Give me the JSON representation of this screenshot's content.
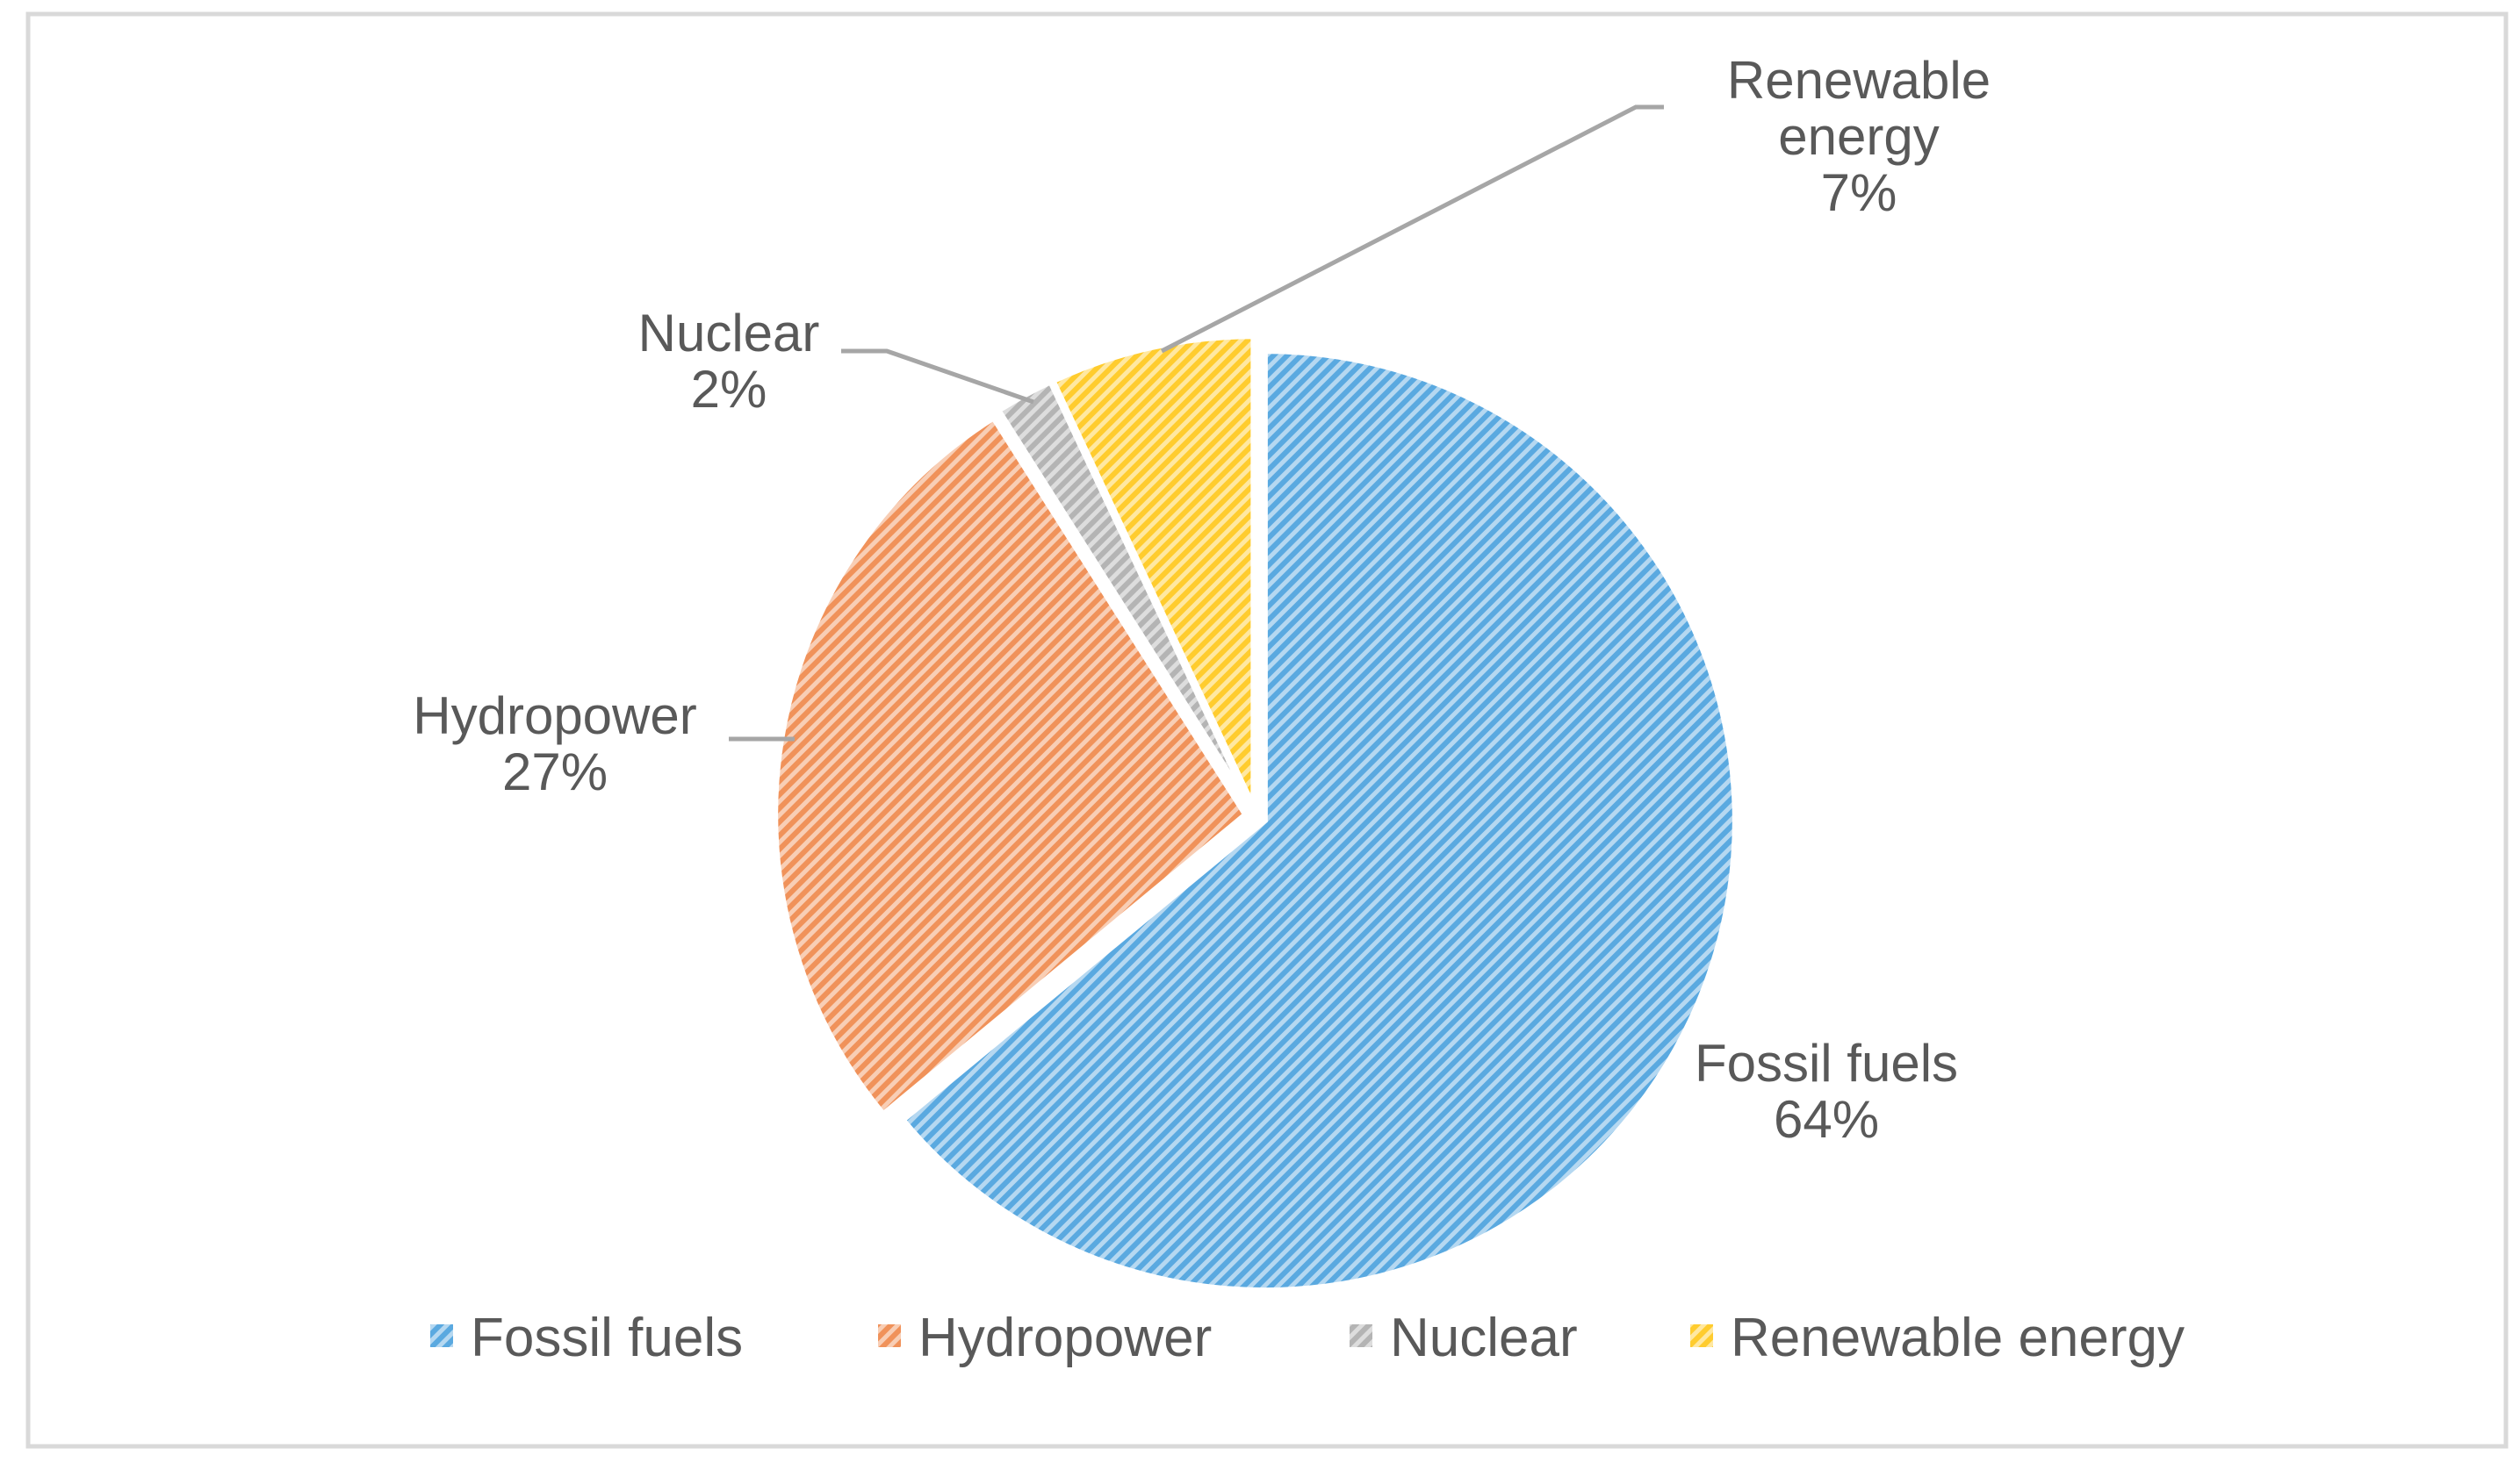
{
  "chart_data": {
    "type": "pie",
    "title": "",
    "slices": [
      {
        "label": "Fossil fuels",
        "value": 64,
        "label_lines": [
          "Fossil fuels"
        ],
        "percent_text": "64%",
        "color": "#5aa9e0"
      },
      {
        "label": "Hydropower",
        "value": 27,
        "label_lines": [
          "Hydropower"
        ],
        "percent_text": "27%",
        "color": "#f0925a"
      },
      {
        "label": "Nuclear",
        "value": 2,
        "label_lines": [
          "Nuclear"
        ],
        "percent_text": "2%",
        "color": "#b4b4b4"
      },
      {
        "label": "Renewable energy",
        "value": 7,
        "label_lines": [
          "Renewable",
          "energy"
        ],
        "percent_text": "7%",
        "color": "#ffcc2e"
      }
    ],
    "start_angle": "12 o'clock, counterclockwise",
    "fill_style": "diagonal hatch",
    "legend": {
      "position": "bottom",
      "items": [
        "Fossil fuels",
        "Hydropower",
        "Nuclear",
        "Renewable energy"
      ]
    }
  }
}
